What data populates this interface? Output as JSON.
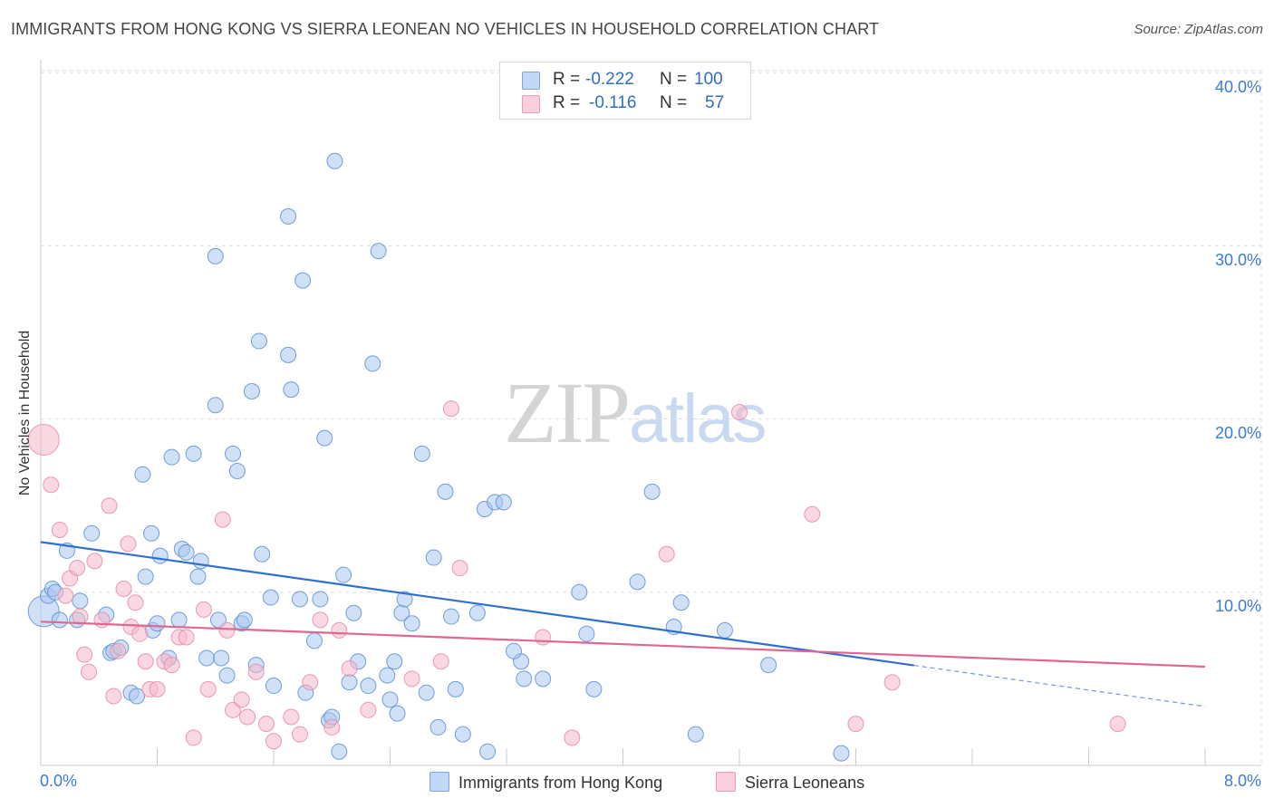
{
  "title": "IMMIGRANTS FROM HONG KONG VS SIERRA LEONEAN NO VEHICLES IN HOUSEHOLD CORRELATION CHART",
  "source": "Source: ZipAtlas.com",
  "watermark": {
    "zip": "ZIP",
    "atlas": "atlas"
  },
  "legend": {
    "rows": [
      {
        "r_label": "R =",
        "r_value": "-0.222",
        "n_label": "N =",
        "n_value": "100"
      },
      {
        "r_label": "R =",
        "r_value": "-0.116",
        "n_label": "N =",
        "n_value": "57"
      }
    ]
  },
  "colors": {
    "blue_fill": "#a9c6ee",
    "blue_stroke": "#5b8fd6",
    "blue_line": "#2e6fd0",
    "pink_fill": "#f6b8cb",
    "pink_stroke": "#e68aa8",
    "pink_line": "#e06693",
    "grid": "#dddddd",
    "tick_text": "#3a7bd5"
  },
  "chart_data": {
    "type": "scatter",
    "title": "IMMIGRANTS FROM HONG KONG VS SIERRA LEONEAN NO VEHICLES IN HOUSEHOLD CORRELATION CHART",
    "xlabel": "",
    "ylabel": "No Vehicles in Household",
    "xlim": [
      0,
      8
    ],
    "ylim": [
      0,
      40
    ],
    "x_tick_labels": [
      "0.0%",
      "8.0%"
    ],
    "y_ticks": [
      10,
      20,
      30,
      40
    ],
    "y_tick_labels": [
      "10.0%",
      "20.0%",
      "30.0%",
      "40.0%"
    ],
    "grid": true,
    "legend_position": "top-center",
    "series": [
      {
        "name": "Immigrants from Hong Kong",
        "color": "#a9c6ee",
        "points": [
          [
            0.02,
            8.9
          ],
          [
            0.05,
            9.8
          ],
          [
            0.13,
            8.4
          ],
          [
            0.08,
            10.2
          ],
          [
            0.1,
            10.0
          ],
          [
            0.18,
            12.4
          ],
          [
            0.25,
            8.4
          ],
          [
            0.27,
            9.5
          ],
          [
            0.35,
            13.4
          ],
          [
            0.45,
            8.7
          ],
          [
            0.48,
            6.5
          ],
          [
            0.5,
            6.6
          ],
          [
            0.55,
            6.8
          ],
          [
            0.62,
            4.2
          ],
          [
            0.66,
            4.0
          ],
          [
            0.7,
            16.8
          ],
          [
            0.72,
            10.9
          ],
          [
            0.76,
            13.4
          ],
          [
            0.77,
            7.8
          ],
          [
            0.8,
            8.2
          ],
          [
            0.82,
            12.1
          ],
          [
            0.88,
            6.2
          ],
          [
            0.9,
            17.8
          ],
          [
            0.95,
            8.4
          ],
          [
            0.97,
            12.5
          ],
          [
            1.0,
            12.3
          ],
          [
            1.05,
            18.0
          ],
          [
            1.08,
            10.9
          ],
          [
            1.1,
            11.8
          ],
          [
            1.14,
            6.2
          ],
          [
            1.2,
            20.8
          ],
          [
            1.2,
            29.4
          ],
          [
            1.22,
            8.4
          ],
          [
            1.24,
            6.2
          ],
          [
            1.28,
            5.2
          ],
          [
            1.32,
            18.0
          ],
          [
            1.35,
            17.0
          ],
          [
            1.38,
            8.2
          ],
          [
            1.4,
            8.4
          ],
          [
            1.45,
            21.6
          ],
          [
            1.48,
            5.8
          ],
          [
            1.5,
            24.5
          ],
          [
            1.52,
            12.2
          ],
          [
            1.58,
            9.7
          ],
          [
            1.6,
            4.6
          ],
          [
            1.7,
            23.7
          ],
          [
            1.7,
            31.7
          ],
          [
            1.72,
            21.7
          ],
          [
            1.78,
            9.6
          ],
          [
            1.8,
            28.0
          ],
          [
            1.82,
            4.2
          ],
          [
            1.88,
            7.2
          ],
          [
            1.92,
            9.6
          ],
          [
            1.95,
            18.9
          ],
          [
            1.98,
            2.6
          ],
          [
            2.0,
            2.8
          ],
          [
            2.02,
            34.9
          ],
          [
            2.05,
            0.8
          ],
          [
            2.08,
            11.0
          ],
          [
            2.15,
            8.8
          ],
          [
            2.18,
            6.0
          ],
          [
            2.25,
            4.6
          ],
          [
            2.28,
            23.2
          ],
          [
            2.32,
            29.7
          ],
          [
            2.38,
            5.2
          ],
          [
            2.4,
            3.8
          ],
          [
            2.43,
            6.0
          ],
          [
            2.45,
            3.0
          ],
          [
            2.48,
            8.8
          ],
          [
            2.5,
            9.6
          ],
          [
            2.55,
            8.2
          ],
          [
            2.62,
            18.0
          ],
          [
            2.65,
            4.2
          ],
          [
            2.7,
            12.0
          ],
          [
            2.73,
            2.2
          ],
          [
            2.78,
            15.8
          ],
          [
            2.82,
            8.6
          ],
          [
            2.85,
            4.4
          ],
          [
            2.9,
            1.8
          ],
          [
            3.0,
            8.8
          ],
          [
            3.05,
            14.8
          ],
          [
            3.07,
            0.8
          ],
          [
            3.12,
            15.2
          ],
          [
            3.18,
            15.2
          ],
          [
            3.3,
            6.0
          ],
          [
            3.32,
            5.0
          ],
          [
            3.45,
            5.0
          ],
          [
            3.7,
            10.0
          ],
          [
            3.75,
            7.6
          ],
          [
            3.8,
            4.4
          ],
          [
            4.1,
            10.6
          ],
          [
            4.2,
            15.8
          ],
          [
            4.35,
            8.0
          ],
          [
            4.4,
            9.4
          ],
          [
            4.5,
            1.8
          ],
          [
            4.7,
            7.8
          ],
          [
            5.0,
            5.8
          ],
          [
            5.5,
            0.7
          ],
          [
            3.25,
            6.6
          ],
          [
            2.12,
            4.8
          ]
        ]
      },
      {
        "name": "Sierra Leoneans",
        "color": "#f6b8cb",
        "points": [
          [
            0.02,
            18.8
          ],
          [
            0.07,
            16.2
          ],
          [
            0.13,
            13.6
          ],
          [
            0.17,
            9.8
          ],
          [
            0.2,
            10.8
          ],
          [
            0.25,
            11.4
          ],
          [
            0.27,
            8.6
          ],
          [
            0.3,
            6.4
          ],
          [
            0.33,
            5.4
          ],
          [
            0.37,
            11.8
          ],
          [
            0.42,
            8.4
          ],
          [
            0.47,
            15.0
          ],
          [
            0.5,
            4.0
          ],
          [
            0.53,
            6.6
          ],
          [
            0.57,
            10.2
          ],
          [
            0.6,
            12.8
          ],
          [
            0.62,
            8.0
          ],
          [
            0.65,
            9.4
          ],
          [
            0.68,
            7.6
          ],
          [
            0.72,
            6.0
          ],
          [
            0.75,
            4.4
          ],
          [
            0.8,
            4.4
          ],
          [
            0.85,
            6.0
          ],
          [
            0.9,
            5.8
          ],
          [
            0.95,
            7.4
          ],
          [
            1.0,
            7.4
          ],
          [
            1.05,
            1.6
          ],
          [
            1.12,
            9.0
          ],
          [
            1.15,
            4.4
          ],
          [
            1.25,
            14.2
          ],
          [
            1.28,
            7.8
          ],
          [
            1.32,
            3.2
          ],
          [
            1.38,
            3.8
          ],
          [
            1.42,
            2.8
          ],
          [
            1.48,
            5.4
          ],
          [
            1.55,
            2.4
          ],
          [
            1.6,
            1.4
          ],
          [
            1.72,
            2.8
          ],
          [
            1.78,
            1.8
          ],
          [
            1.85,
            4.8
          ],
          [
            1.92,
            8.4
          ],
          [
            2.0,
            2.2
          ],
          [
            2.05,
            7.8
          ],
          [
            2.12,
            5.6
          ],
          [
            2.25,
            3.2
          ],
          [
            2.55,
            5.0
          ],
          [
            2.75,
            6.0
          ],
          [
            2.82,
            20.6
          ],
          [
            2.88,
            11.4
          ],
          [
            3.45,
            7.4
          ],
          [
            3.65,
            1.6
          ],
          [
            4.3,
            12.2
          ],
          [
            4.8,
            20.4
          ],
          [
            5.3,
            14.5
          ],
          [
            5.6,
            2.4
          ],
          [
            5.85,
            4.8
          ],
          [
            7.4,
            2.4
          ]
        ]
      }
    ],
    "trend_lines": [
      {
        "series": "Immigrants from Hong Kong",
        "solid_x": [
          0,
          6.0
        ],
        "dashed_x": [
          6.0,
          8.0
        ],
        "y_at_0": 12.9,
        "y_at_8": 3.4
      },
      {
        "series": "Sierra Leoneans",
        "solid_x": [
          0,
          8.0
        ],
        "y_at_0": 8.3,
        "y_at_8": 5.7
      }
    ],
    "bubble_size_hint": {
      "large_points": [
        [
          0.02,
          8.9
        ],
        [
          0.02,
          18.8
        ]
      ]
    }
  }
}
